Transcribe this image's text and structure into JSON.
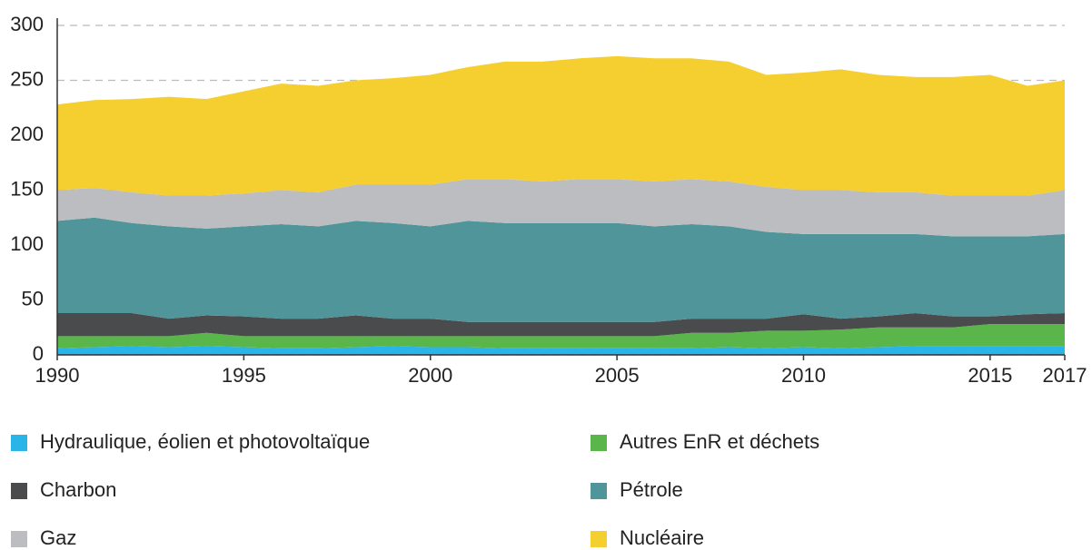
{
  "chart_data": {
    "type": "stacked_area",
    "x": [
      1990,
      1991,
      1992,
      1993,
      1994,
      1995,
      1996,
      1997,
      1998,
      1999,
      2000,
      2001,
      2002,
      2003,
      2004,
      2005,
      2006,
      2007,
      2008,
      2009,
      2010,
      2011,
      2012,
      2013,
      2014,
      2015,
      2016,
      2017
    ],
    "series": [
      {
        "name": "Hydraulique, éolien et photovoltaïque",
        "color": "#29b5e8",
        "values": [
          6,
          7,
          8,
          7,
          8,
          7,
          6,
          6,
          7,
          8,
          7,
          7,
          6,
          6,
          6,
          6,
          6,
          6,
          7,
          6,
          7,
          6,
          7,
          8,
          8,
          8,
          8,
          8
        ]
      },
      {
        "name": "Autres EnR et déchets",
        "color": "#5ab54b",
        "values": [
          11,
          10,
          9,
          10,
          12,
          10,
          11,
          11,
          10,
          9,
          10,
          10,
          11,
          11,
          11,
          11,
          11,
          14,
          13,
          16,
          15,
          17,
          18,
          17,
          17,
          20,
          20,
          20
        ]
      },
      {
        "name": "Charbon",
        "color": "#4a4b4d",
        "values": [
          21,
          21,
          21,
          16,
          16,
          18,
          16,
          16,
          19,
          16,
          16,
          13,
          13,
          13,
          13,
          13,
          13,
          13,
          13,
          11,
          15,
          10,
          10,
          13,
          10,
          7,
          9,
          10
        ]
      },
      {
        "name": "Pétrole",
        "color": "#4f9599",
        "values": [
          84,
          87,
          82,
          84,
          79,
          82,
          86,
          84,
          86,
          87,
          84,
          92,
          90,
          90,
          90,
          90,
          87,
          86,
          84,
          79,
          73,
          77,
          75,
          72,
          73,
          73,
          71,
          72
        ]
      },
      {
        "name": "Gaz",
        "color": "#bcbdc0",
        "values": [
          28,
          27,
          28,
          28,
          30,
          30,
          31,
          31,
          33,
          35,
          38,
          38,
          40,
          38,
          40,
          40,
          41,
          41,
          41,
          41,
          40,
          40,
          38,
          38,
          37,
          37,
          37,
          40
        ]
      },
      {
        "name": "Nucléaire",
        "color": "#f5ce30",
        "values": [
          78,
          80,
          85,
          90,
          88,
          93,
          97,
          97,
          95,
          97,
          100,
          102,
          107,
          109,
          110,
          112,
          112,
          110,
          109,
          102,
          107,
          110,
          107,
          105,
          108,
          110,
          100,
          100
        ]
      }
    ],
    "xlim": [
      1990,
      2017
    ],
    "xticks": [
      1990,
      1995,
      2000,
      2005,
      2010,
      2015,
      2017
    ],
    "ylim": [
      0,
      300
    ],
    "yticks": [
      0,
      50,
      100,
      150,
      200,
      250,
      300
    ],
    "grid": true
  }
}
